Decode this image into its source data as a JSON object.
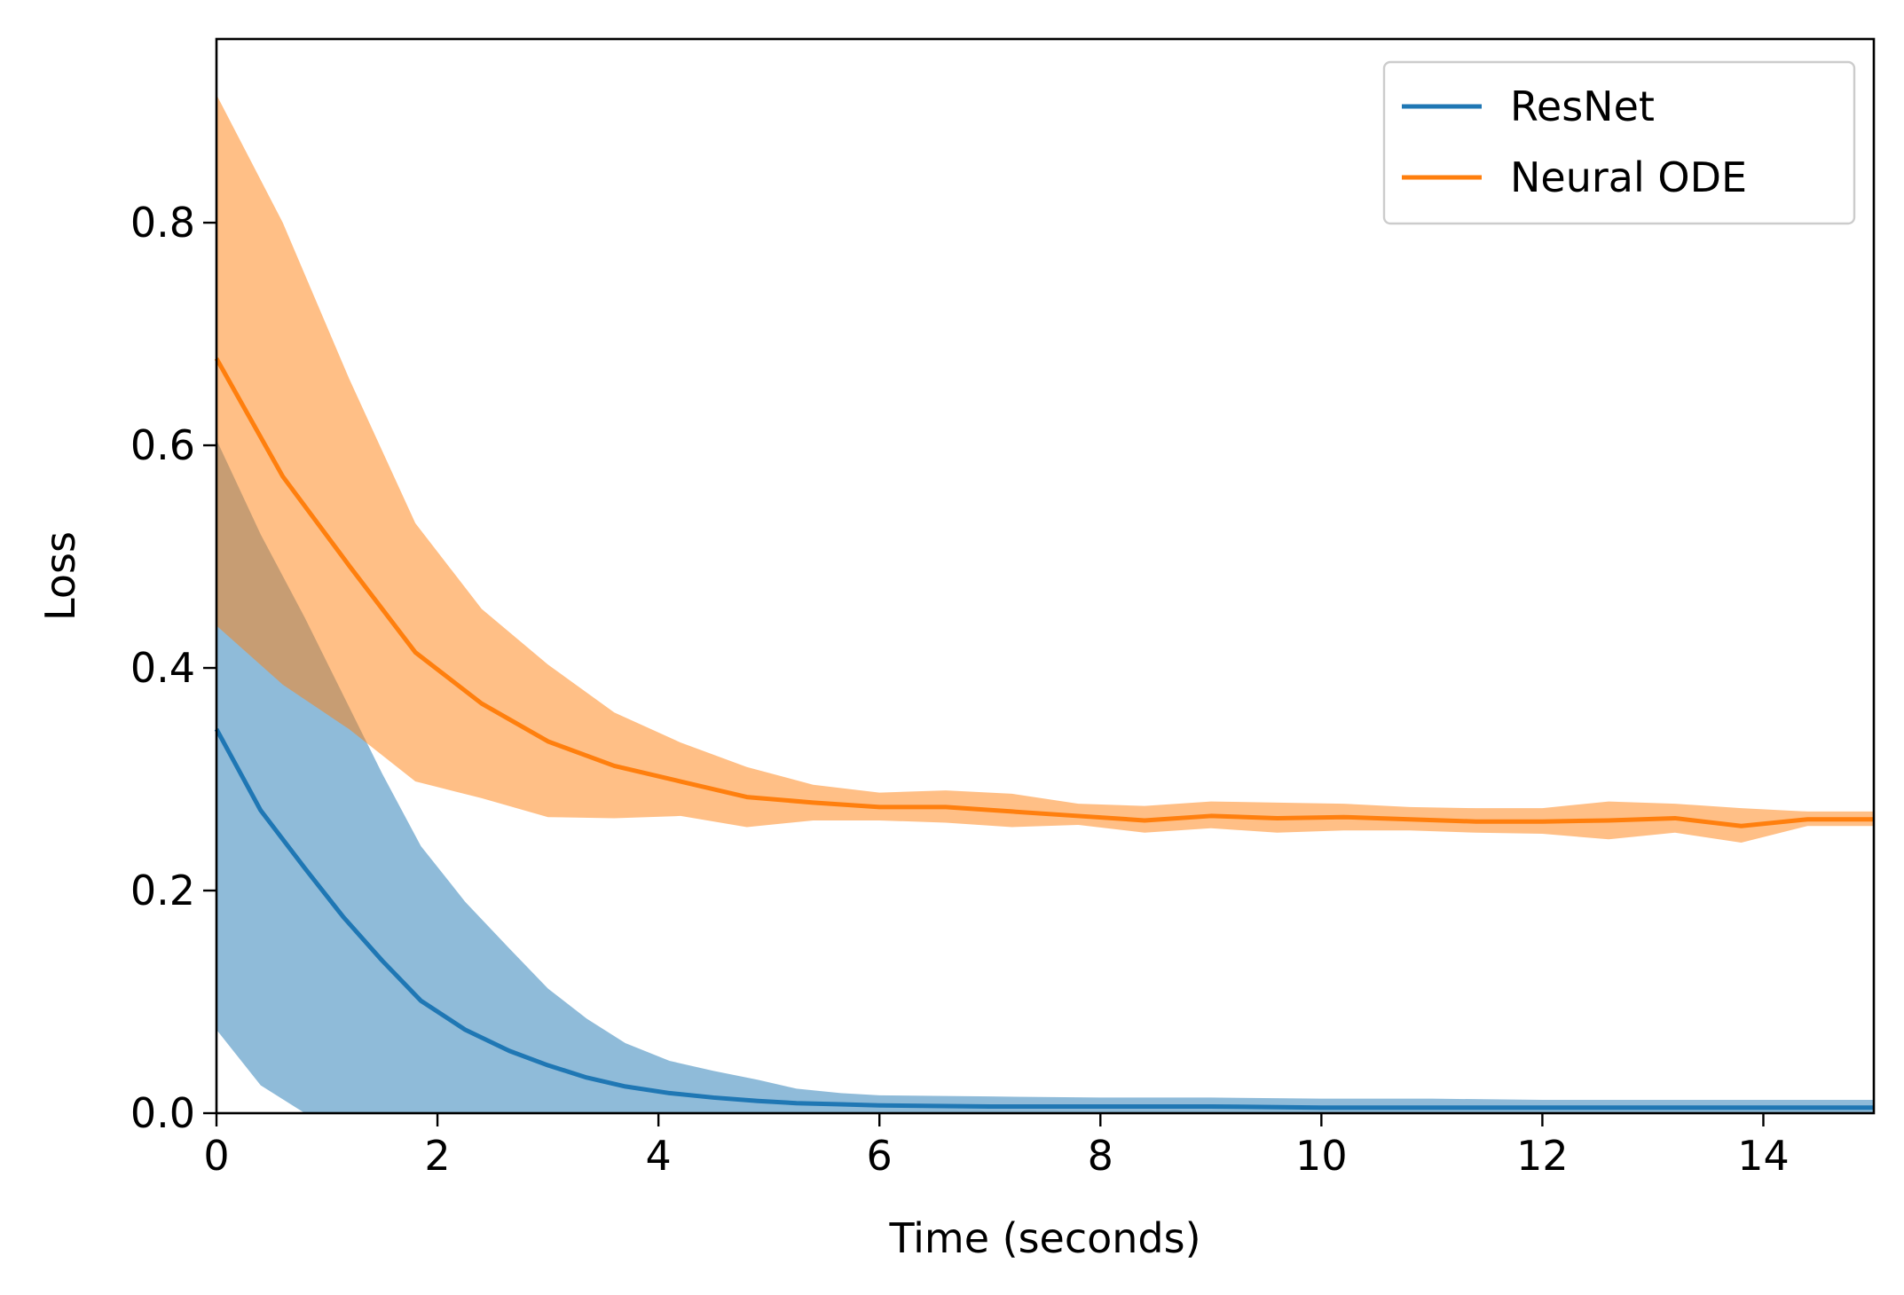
{
  "chart_data": {
    "type": "line",
    "title": "",
    "xlabel": "Time (seconds)",
    "ylabel": "Loss",
    "xlim": [
      0,
      15
    ],
    "ylim": [
      0,
      0.965
    ],
    "xticks": [
      0,
      2,
      4,
      6,
      8,
      10,
      12,
      14
    ],
    "yticks": [
      0.0,
      0.2,
      0.4,
      0.6,
      0.8
    ],
    "xtick_labels": [
      "0",
      "2",
      "4",
      "6",
      "8",
      "10",
      "12",
      "14"
    ],
    "ytick_labels": [
      "0.0",
      "0.2",
      "0.4",
      "0.6",
      "0.8"
    ],
    "grid": false,
    "legend_position": "top-right",
    "series": [
      {
        "name": "ResNet",
        "color": "#1f77b4",
        "band_color": "#1f77b4",
        "x": [
          0,
          0.4,
          0.8,
          1.15,
          1.5,
          1.85,
          2.25,
          2.65,
          3.0,
          3.35,
          3.7,
          4.1,
          4.5,
          4.9,
          5.25,
          5.65,
          6.0,
          7.0,
          8.0,
          9.0,
          10.0,
          11.0,
          12.0,
          13.0,
          14.0,
          15.0
        ],
        "mean": [
          0.345,
          0.272,
          0.22,
          0.176,
          0.137,
          0.101,
          0.075,
          0.056,
          0.043,
          0.032,
          0.024,
          0.018,
          0.014,
          0.011,
          0.009,
          0.008,
          0.007,
          0.006,
          0.006,
          0.006,
          0.005,
          0.005,
          0.005,
          0.005,
          0.005,
          0.005
        ],
        "lower": [
          0.075,
          0.025,
          0.0,
          0.0,
          0.0,
          0.0,
          0.0,
          0.0,
          0.0,
          0.0,
          0.0,
          0.0,
          0.0,
          0.0,
          0.0,
          0.0,
          0.0,
          0.0,
          0.0,
          0.0,
          0.0,
          0.0,
          0.0,
          0.0,
          0.0,
          0.0
        ],
        "upper": [
          0.605,
          0.52,
          0.445,
          0.375,
          0.305,
          0.24,
          0.19,
          0.148,
          0.112,
          0.085,
          0.063,
          0.047,
          0.038,
          0.03,
          0.022,
          0.018,
          0.016,
          0.015,
          0.014,
          0.014,
          0.013,
          0.013,
          0.012,
          0.012,
          0.012,
          0.012
        ]
      },
      {
        "name": "Neural ODE",
        "color": "#ff7f0e",
        "band_color": "#ff7f0e",
        "x": [
          0,
          0.6,
          1.2,
          1.8,
          2.4,
          3.0,
          3.6,
          4.2,
          4.8,
          5.4,
          6.0,
          6.6,
          7.2,
          7.8,
          8.4,
          9.0,
          9.6,
          10.2,
          10.8,
          11.4,
          12.0,
          12.6,
          13.2,
          13.8,
          14.4,
          15.0
        ],
        "mean": [
          0.678,
          0.572,
          0.492,
          0.414,
          0.368,
          0.334,
          0.312,
          0.298,
          0.284,
          0.279,
          0.275,
          0.275,
          0.271,
          0.267,
          0.263,
          0.267,
          0.265,
          0.266,
          0.264,
          0.262,
          0.262,
          0.263,
          0.265,
          0.258,
          0.264,
          0.264
        ],
        "lower": [
          0.438,
          0.385,
          0.345,
          0.298,
          0.283,
          0.266,
          0.265,
          0.267,
          0.257,
          0.263,
          0.263,
          0.261,
          0.257,
          0.259,
          0.252,
          0.256,
          0.252,
          0.254,
          0.254,
          0.252,
          0.251,
          0.246,
          0.252,
          0.243,
          0.258,
          0.258
        ],
        "upper": [
          0.915,
          0.8,
          0.66,
          0.53,
          0.453,
          0.403,
          0.36,
          0.333,
          0.311,
          0.295,
          0.288,
          0.29,
          0.287,
          0.278,
          0.276,
          0.28,
          0.279,
          0.278,
          0.275,
          0.274,
          0.274,
          0.28,
          0.278,
          0.274,
          0.271,
          0.271
        ]
      }
    ]
  }
}
